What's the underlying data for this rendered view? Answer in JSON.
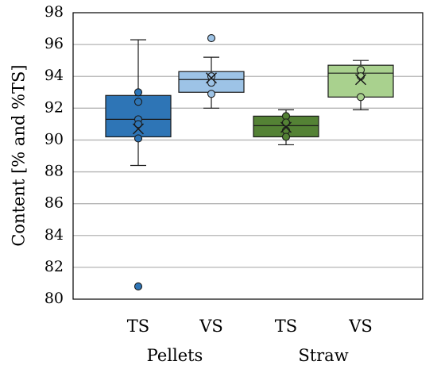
{
  "chart_data": {
    "type": "box",
    "ylabel": "Content [% and %TS]",
    "ylim": [
      80,
      98
    ],
    "yticks": [
      80,
      82,
      84,
      86,
      88,
      90,
      92,
      94,
      96,
      98
    ],
    "ytick_labels": [
      "80",
      "82",
      "84",
      "86",
      "88",
      "90",
      "92",
      "94",
      "96",
      "98"
    ],
    "grid": true,
    "groups": [
      {
        "label": "Pellets",
        "categories": [
          "TS",
          "VS"
        ]
      },
      {
        "label": "Straw",
        "categories": [
          "TS",
          "VS"
        ]
      }
    ],
    "boxes": [
      {
        "group": "Pellets",
        "category": "TS",
        "color": "#2e75b6",
        "whisker_low": 88.4,
        "q1": 90.2,
        "median": 91.3,
        "q3": 92.8,
        "whisker_high": 96.3,
        "mean": 90.7,
        "points": [
          93.0,
          92.4,
          91.3,
          91.0,
          90.1
        ],
        "outliers": [
          80.8
        ]
      },
      {
        "group": "Pellets",
        "category": "VS",
        "color": "#9dc3e6",
        "whisker_low": 92.0,
        "q1": 93.0,
        "median": 93.8,
        "q3": 94.3,
        "whisker_high": 95.2,
        "mean": 93.9,
        "points": [
          94.0,
          93.6,
          92.9
        ],
        "outliers": [
          96.4
        ]
      },
      {
        "group": "Straw",
        "category": "TS",
        "color": "#548235",
        "whisker_low": 89.7,
        "q1": 90.2,
        "median": 90.9,
        "q3": 91.5,
        "whisker_high": 91.9,
        "mean": 90.8,
        "points": [
          91.5,
          91.1,
          90.6,
          90.2
        ],
        "outliers": []
      },
      {
        "group": "Straw",
        "category": "VS",
        "color": "#a9d18e",
        "whisker_low": 91.9,
        "q1": 92.7,
        "median": 94.2,
        "q3": 94.7,
        "whisker_high": 95.0,
        "mean": 93.8,
        "points": [
          94.4,
          94.0,
          92.7
        ],
        "outliers": []
      }
    ]
  }
}
